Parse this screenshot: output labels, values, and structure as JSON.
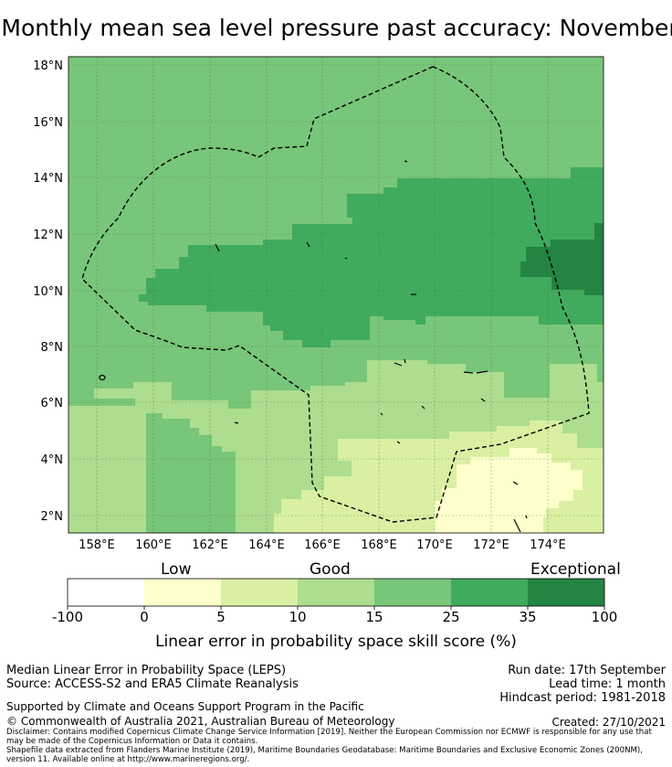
{
  "title": "Monthly mean sea level pressure past accuracy: November",
  "map": {
    "lat_labels": [
      "18°N",
      "16°N",
      "14°N",
      "12°N",
      "10°N",
      "8°N",
      "6°N",
      "4°N",
      "2°N"
    ],
    "lon_labels": [
      "158°E",
      "160°E",
      "162°E",
      "164°E",
      "166°E",
      "168°E",
      "170°E",
      "172°E",
      "174°E"
    ],
    "region": "Marshall Islands EEZ (dashed boundary)"
  },
  "colorbar": {
    "categories": [
      "Low",
      "Good",
      "Exceptional"
    ],
    "ticks": [
      "-100",
      "0",
      "5",
      "10",
      "15",
      "25",
      "35",
      "100"
    ],
    "colors": [
      "#ffffff",
      "#ffffcc",
      "#d9f0a3",
      "#addd8e",
      "#78c679",
      "#41ab5d",
      "#238443"
    ],
    "label": "Linear error in probability space skill score (%)"
  },
  "info": {
    "line1": "Median Linear Error in Probability Space (LEPS)",
    "line2": "Source: ACCESS-S2 and ERA5 Climate Reanalysis",
    "line3": "Supported by Climate and Oceans Support Program in the Pacific",
    "line4": "© Commonwealth of Australia 2021, Australian Bureau of Meteorology",
    "run_date": "Run date: 17th September",
    "lead_time": "Lead time: 1 month",
    "hindcast": "Hindcast period: 1981-2018",
    "created": "Created: 27/10/2021",
    "disclaimer": "Disclaimer: Contains modified Copernicus Climate Change Service Information [2019]. Neither the European Commission nor ECMWF is responsible for any use that may be made of the Copernicus Information or Data it contains.",
    "shapefile": "Shapefile data extracted from Flanders Marine Institute (2019), Maritime Boundaries Geodatabase: Maritime Boundaries and Exclusive Economic Zones (200NM), version 11. Available online at http://www.marineregions.org/."
  }
}
